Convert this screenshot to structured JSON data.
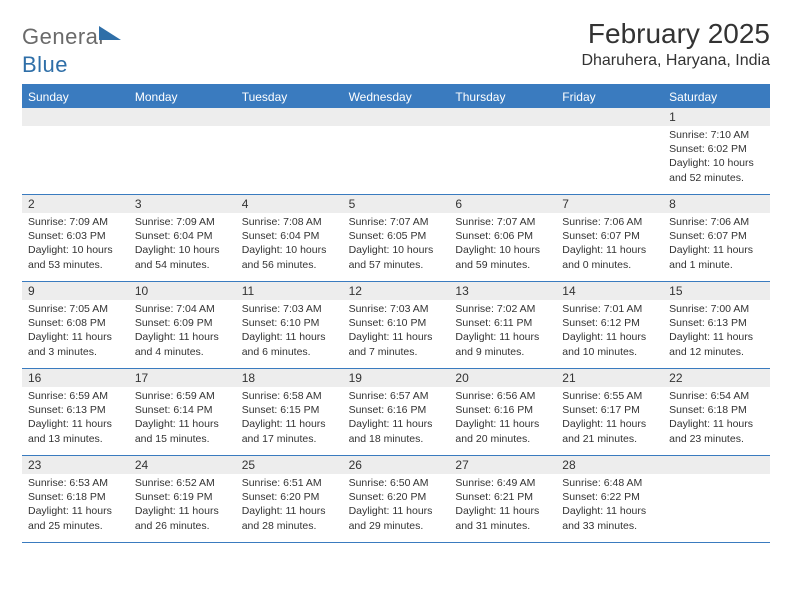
{
  "logo": {
    "text1": "General",
    "text2": "Blue"
  },
  "title": "February 2025",
  "location": "Dharuhera, Haryana, India",
  "accent_color": "#3a7bbf",
  "bg_color": "#ffffff",
  "header_bg": "#ededed",
  "day_names": [
    "Sunday",
    "Monday",
    "Tuesday",
    "Wednesday",
    "Thursday",
    "Friday",
    "Saturday"
  ],
  "weeks": [
    [
      null,
      null,
      null,
      null,
      null,
      null,
      {
        "n": "1",
        "sr": "Sunrise: 7:10 AM",
        "ss": "Sunset: 6:02 PM",
        "d1": "Daylight: 10 hours",
        "d2": "and 52 minutes."
      }
    ],
    [
      {
        "n": "2",
        "sr": "Sunrise: 7:09 AM",
        "ss": "Sunset: 6:03 PM",
        "d1": "Daylight: 10 hours",
        "d2": "and 53 minutes."
      },
      {
        "n": "3",
        "sr": "Sunrise: 7:09 AM",
        "ss": "Sunset: 6:04 PM",
        "d1": "Daylight: 10 hours",
        "d2": "and 54 minutes."
      },
      {
        "n": "4",
        "sr": "Sunrise: 7:08 AM",
        "ss": "Sunset: 6:04 PM",
        "d1": "Daylight: 10 hours",
        "d2": "and 56 minutes."
      },
      {
        "n": "5",
        "sr": "Sunrise: 7:07 AM",
        "ss": "Sunset: 6:05 PM",
        "d1": "Daylight: 10 hours",
        "d2": "and 57 minutes."
      },
      {
        "n": "6",
        "sr": "Sunrise: 7:07 AM",
        "ss": "Sunset: 6:06 PM",
        "d1": "Daylight: 10 hours",
        "d2": "and 59 minutes."
      },
      {
        "n": "7",
        "sr": "Sunrise: 7:06 AM",
        "ss": "Sunset: 6:07 PM",
        "d1": "Daylight: 11 hours",
        "d2": "and 0 minutes."
      },
      {
        "n": "8",
        "sr": "Sunrise: 7:06 AM",
        "ss": "Sunset: 6:07 PM",
        "d1": "Daylight: 11 hours",
        "d2": "and 1 minute."
      }
    ],
    [
      {
        "n": "9",
        "sr": "Sunrise: 7:05 AM",
        "ss": "Sunset: 6:08 PM",
        "d1": "Daylight: 11 hours",
        "d2": "and 3 minutes."
      },
      {
        "n": "10",
        "sr": "Sunrise: 7:04 AM",
        "ss": "Sunset: 6:09 PM",
        "d1": "Daylight: 11 hours",
        "d2": "and 4 minutes."
      },
      {
        "n": "11",
        "sr": "Sunrise: 7:03 AM",
        "ss": "Sunset: 6:10 PM",
        "d1": "Daylight: 11 hours",
        "d2": "and 6 minutes."
      },
      {
        "n": "12",
        "sr": "Sunrise: 7:03 AM",
        "ss": "Sunset: 6:10 PM",
        "d1": "Daylight: 11 hours",
        "d2": "and 7 minutes."
      },
      {
        "n": "13",
        "sr": "Sunrise: 7:02 AM",
        "ss": "Sunset: 6:11 PM",
        "d1": "Daylight: 11 hours",
        "d2": "and 9 minutes."
      },
      {
        "n": "14",
        "sr": "Sunrise: 7:01 AM",
        "ss": "Sunset: 6:12 PM",
        "d1": "Daylight: 11 hours",
        "d2": "and 10 minutes."
      },
      {
        "n": "15",
        "sr": "Sunrise: 7:00 AM",
        "ss": "Sunset: 6:13 PM",
        "d1": "Daylight: 11 hours",
        "d2": "and 12 minutes."
      }
    ],
    [
      {
        "n": "16",
        "sr": "Sunrise: 6:59 AM",
        "ss": "Sunset: 6:13 PM",
        "d1": "Daylight: 11 hours",
        "d2": "and 13 minutes."
      },
      {
        "n": "17",
        "sr": "Sunrise: 6:59 AM",
        "ss": "Sunset: 6:14 PM",
        "d1": "Daylight: 11 hours",
        "d2": "and 15 minutes."
      },
      {
        "n": "18",
        "sr": "Sunrise: 6:58 AM",
        "ss": "Sunset: 6:15 PM",
        "d1": "Daylight: 11 hours",
        "d2": "and 17 minutes."
      },
      {
        "n": "19",
        "sr": "Sunrise: 6:57 AM",
        "ss": "Sunset: 6:16 PM",
        "d1": "Daylight: 11 hours",
        "d2": "and 18 minutes."
      },
      {
        "n": "20",
        "sr": "Sunrise: 6:56 AM",
        "ss": "Sunset: 6:16 PM",
        "d1": "Daylight: 11 hours",
        "d2": "and 20 minutes."
      },
      {
        "n": "21",
        "sr": "Sunrise: 6:55 AM",
        "ss": "Sunset: 6:17 PM",
        "d1": "Daylight: 11 hours",
        "d2": "and 21 minutes."
      },
      {
        "n": "22",
        "sr": "Sunrise: 6:54 AM",
        "ss": "Sunset: 6:18 PM",
        "d1": "Daylight: 11 hours",
        "d2": "and 23 minutes."
      }
    ],
    [
      {
        "n": "23",
        "sr": "Sunrise: 6:53 AM",
        "ss": "Sunset: 6:18 PM",
        "d1": "Daylight: 11 hours",
        "d2": "and 25 minutes."
      },
      {
        "n": "24",
        "sr": "Sunrise: 6:52 AM",
        "ss": "Sunset: 6:19 PM",
        "d1": "Daylight: 11 hours",
        "d2": "and 26 minutes."
      },
      {
        "n": "25",
        "sr": "Sunrise: 6:51 AM",
        "ss": "Sunset: 6:20 PM",
        "d1": "Daylight: 11 hours",
        "d2": "and 28 minutes."
      },
      {
        "n": "26",
        "sr": "Sunrise: 6:50 AM",
        "ss": "Sunset: 6:20 PM",
        "d1": "Daylight: 11 hours",
        "d2": "and 29 minutes."
      },
      {
        "n": "27",
        "sr": "Sunrise: 6:49 AM",
        "ss": "Sunset: 6:21 PM",
        "d1": "Daylight: 11 hours",
        "d2": "and 31 minutes."
      },
      {
        "n": "28",
        "sr": "Sunrise: 6:48 AM",
        "ss": "Sunset: 6:22 PM",
        "d1": "Daylight: 11 hours",
        "d2": "and 33 minutes."
      },
      null
    ]
  ]
}
